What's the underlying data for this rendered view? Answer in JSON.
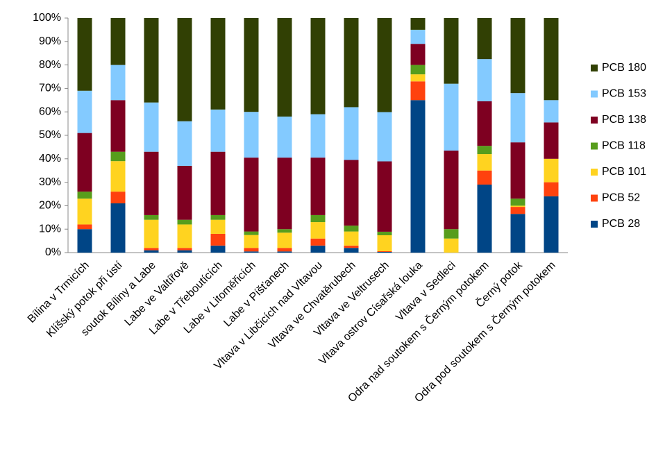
{
  "chart_data": {
    "type": "stacked_bar_100",
    "categories": [
      "Bílina v Trmicích",
      "Klíšský potok při ústí",
      "soutok Bíliny a Labe",
      "Labe ve Valtířově",
      "Labe v Třeboutících",
      "Labe v Litoměřicích",
      "Labe v Píšťanech",
      "Vltava v Libčicích nad Vltavou",
      "Vltava ve Chvatěrubech",
      "Vltava ve Veltrusech",
      "Vltava ostrov Císařská louka",
      "Vltava v Sedleci",
      "Odra nad soutokem s Černým potokem",
      "Černý potok",
      "Odra pod soutokem s Černým potokem"
    ],
    "series": [
      {
        "name": "PCB 28",
        "color": "#004586",
        "values": [
          10,
          21,
          1,
          1,
          3,
          0.5,
          0.5,
          3,
          2,
          0.3,
          65,
          0,
          29,
          16.5,
          24
        ]
      },
      {
        "name": "PCB 52",
        "color": "#ff420e",
        "values": [
          2,
          5,
          1,
          1,
          5,
          1.5,
          1.5,
          3,
          1,
          0.3,
          8,
          0,
          6,
          3,
          6
        ]
      },
      {
        "name": "PCB 101",
        "color": "#ffd320",
        "values": [
          11,
          13,
          12,
          10,
          6,
          5.5,
          6.5,
          7,
          6,
          6.8,
          3,
          6,
          7,
          0.5,
          10
        ]
      },
      {
        "name": "PCB 118",
        "color": "#579d1c",
        "values": [
          3,
          4,
          2,
          2,
          2,
          1.5,
          1.5,
          3,
          2.5,
          1.5,
          4,
          4,
          3.5,
          3,
          0
        ]
      },
      {
        "name": "PCB 138",
        "color": "#7e0021",
        "values": [
          25,
          22,
          27,
          23,
          27,
          31.5,
          30.5,
          24.5,
          28,
          30,
          9,
          33.5,
          19,
          24,
          15.5
        ]
      },
      {
        "name": "PCB 153",
        "color": "#83caff",
        "values": [
          18,
          15,
          21,
          19,
          18,
          19.5,
          17.5,
          18.5,
          22.5,
          21,
          6,
          28.5,
          18,
          21,
          9.5
        ]
      },
      {
        "name": "PCB 180",
        "color": "#314004",
        "values": [
          31,
          20,
          36,
          44,
          39,
          40,
          42,
          41,
          38,
          40.1,
          5,
          28,
          17.5,
          32,
          35
        ]
      }
    ],
    "ylim": [
      0,
      100
    ],
    "yticks": [
      {
        "value": 0,
        "label": "0%"
      },
      {
        "value": 10,
        "label": "10%"
      },
      {
        "value": 20,
        "label": "20%"
      },
      {
        "value": 30,
        "label": "30%"
      },
      {
        "value": 40,
        "label": "40%"
      },
      {
        "value": 50,
        "label": "50%"
      },
      {
        "value": 60,
        "label": "60%"
      },
      {
        "value": 70,
        "label": "70%"
      },
      {
        "value": 80,
        "label": "80%"
      },
      {
        "value": 90,
        "label": "90%"
      },
      {
        "value": 100,
        "label": "100%"
      }
    ],
    "grid": false,
    "legend": "right"
  }
}
